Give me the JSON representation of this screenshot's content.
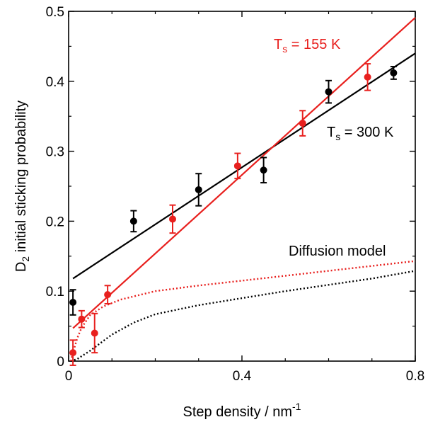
{
  "chart_data": {
    "type": "scatter",
    "xlabel": "Step density / nm",
    "xlabel_sup": "-1",
    "ylabel_prefix": "D",
    "ylabel_sub": "2",
    "ylabel_suffix": " initial sticking probability",
    "xlim": [
      0,
      0.8
    ],
    "ylim": [
      0,
      0.5
    ],
    "xticks": [
      0,
      0.4,
      0.8
    ],
    "xtick_labels": [
      "0",
      "0.4",
      "0.8"
    ],
    "yticks": [
      0,
      0.1,
      0.2,
      0.3,
      0.4,
      0.5
    ],
    "ytick_labels": [
      "0",
      "0.1",
      "0.2",
      "0.3",
      "0.4",
      "0.5"
    ],
    "grid": false,
    "series": [
      {
        "color": "#000000",
        "points": [
          {
            "x": 0.01,
            "y": 0.084,
            "err": 0.018
          },
          {
            "x": 0.15,
            "y": 0.2,
            "err": 0.015
          },
          {
            "x": 0.3,
            "y": 0.245,
            "err": 0.023
          },
          {
            "x": 0.45,
            "y": 0.273,
            "err": 0.018
          },
          {
            "x": 0.6,
            "y": 0.385,
            "err": 0.016
          },
          {
            "x": 0.75,
            "y": 0.412,
            "err": 0.009
          }
        ],
        "fit": {
          "x": [
            0.01,
            0.8
          ],
          "y": [
            0.118,
            0.44
          ]
        },
        "model": [
          {
            "x": 0.005,
            "y": 0.0
          },
          {
            "x": 0.02,
            "y": 0.003
          },
          {
            "x": 0.05,
            "y": 0.015
          },
          {
            "x": 0.1,
            "y": 0.038
          },
          {
            "x": 0.15,
            "y": 0.055
          },
          {
            "x": 0.2,
            "y": 0.067
          },
          {
            "x": 0.3,
            "y": 0.08
          },
          {
            "x": 0.4,
            "y": 0.09
          },
          {
            "x": 0.5,
            "y": 0.1
          },
          {
            "x": 0.6,
            "y": 0.109
          },
          {
            "x": 0.7,
            "y": 0.118
          },
          {
            "x": 0.8,
            "y": 0.129
          }
        ]
      },
      {
        "color": "#e8201e",
        "points": [
          {
            "x": 0.01,
            "y": 0.012,
            "err": 0.018
          },
          {
            "x": 0.03,
            "y": 0.06,
            "err": 0.012
          },
          {
            "x": 0.06,
            "y": 0.04,
            "err": 0.028
          },
          {
            "x": 0.09,
            "y": 0.095,
            "err": 0.013
          },
          {
            "x": 0.24,
            "y": 0.203,
            "err": 0.02
          },
          {
            "x": 0.39,
            "y": 0.279,
            "err": 0.018
          },
          {
            "x": 0.54,
            "y": 0.34,
            "err": 0.018
          },
          {
            "x": 0.69,
            "y": 0.406,
            "err": 0.019
          }
        ],
        "fit": {
          "x": [
            0.01,
            0.8
          ],
          "y": [
            0.047,
            0.491
          ]
        },
        "model": [
          {
            "x": 0.005,
            "y": 0.0
          },
          {
            "x": 0.01,
            "y": 0.012
          },
          {
            "x": 0.02,
            "y": 0.033
          },
          {
            "x": 0.03,
            "y": 0.048
          },
          {
            "x": 0.05,
            "y": 0.066
          },
          {
            "x": 0.08,
            "y": 0.078
          },
          {
            "x": 0.12,
            "y": 0.088
          },
          {
            "x": 0.2,
            "y": 0.1
          },
          {
            "x": 0.3,
            "y": 0.108
          },
          {
            "x": 0.4,
            "y": 0.115
          },
          {
            "x": 0.5,
            "y": 0.122
          },
          {
            "x": 0.6,
            "y": 0.129
          },
          {
            "x": 0.7,
            "y": 0.136
          },
          {
            "x": 0.8,
            "y": 0.143
          }
        ]
      }
    ],
    "annotations": {
      "red_label_T": "T",
      "red_label_sub": "s",
      "red_label_rest": " = 155 K",
      "black_label_T": "T",
      "black_label_sub": "s",
      "black_label_rest": " = 300 K",
      "model_label": "Diffusion model"
    }
  }
}
